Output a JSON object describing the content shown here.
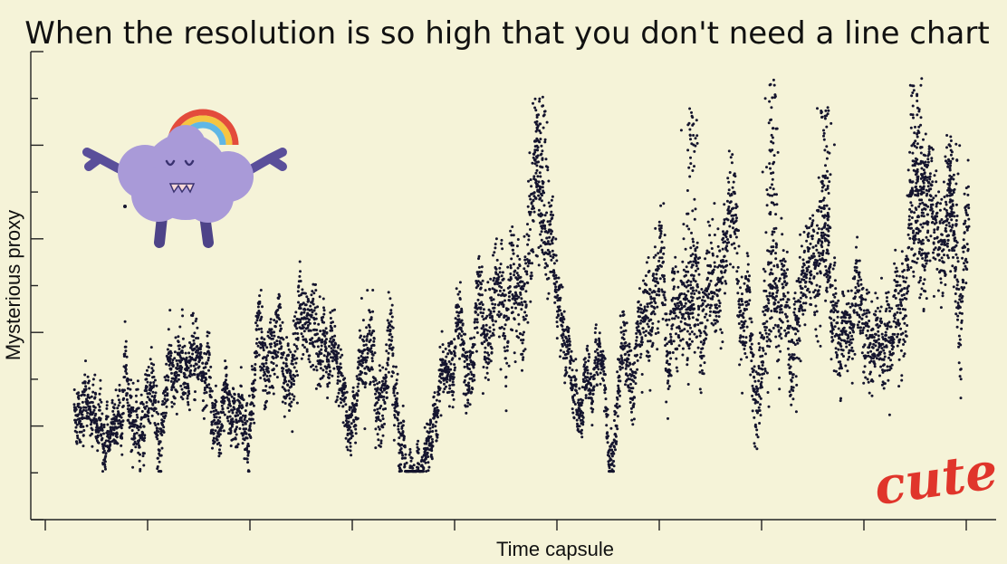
{
  "chart_data": {
    "type": "scatter",
    "title": "When the resolution is so high that you don't need a line chart",
    "xlabel": "Time capsule",
    "ylabel": "Mysterious proxy",
    "x_tick_labels": [],
    "y_tick_labels": [],
    "xlim": [
      0,
      1
    ],
    "ylim": [
      0,
      1
    ],
    "point_color": "#15152e",
    "series": [
      {
        "note_keyframes": "trend of the dense scatter cloud as (x, y, spread) in relative 0-1 data units",
        "keyframes": [
          [
            0.0,
            0.18,
            0.05
          ],
          [
            0.03,
            0.17,
            0.05
          ],
          [
            0.06,
            0.16,
            0.06
          ],
          [
            0.09,
            0.22,
            0.07
          ],
          [
            0.12,
            0.28,
            0.07
          ],
          [
            0.15,
            0.24,
            0.06
          ],
          [
            0.18,
            0.22,
            0.06
          ],
          [
            0.21,
            0.27,
            0.07
          ],
          [
            0.245,
            0.36,
            0.09
          ],
          [
            0.28,
            0.28,
            0.08
          ],
          [
            0.31,
            0.15,
            0.05
          ],
          [
            0.33,
            0.26,
            0.09
          ],
          [
            0.355,
            0.28,
            0.08
          ],
          [
            0.37,
            0.16,
            0.05
          ],
          [
            0.39,
            0.13,
            0.04
          ],
          [
            0.42,
            0.2,
            0.06
          ],
          [
            0.45,
            0.28,
            0.08
          ],
          [
            0.48,
            0.36,
            0.1
          ],
          [
            0.5,
            0.52,
            0.12
          ],
          [
            0.52,
            0.66,
            0.14
          ],
          [
            0.535,
            0.48,
            0.08
          ],
          [
            0.55,
            0.24,
            0.06
          ],
          [
            0.58,
            0.18,
            0.05
          ],
          [
            0.6,
            0.15,
            0.05
          ],
          [
            0.62,
            0.22,
            0.07
          ],
          [
            0.64,
            0.38,
            0.1
          ],
          [
            0.66,
            0.45,
            0.11
          ],
          [
            0.68,
            0.35,
            0.1
          ],
          [
            0.7,
            0.42,
            0.11
          ],
          [
            0.72,
            0.5,
            0.11
          ],
          [
            0.74,
            0.55,
            0.12
          ],
          [
            0.76,
            0.38,
            0.1
          ],
          [
            0.78,
            0.5,
            0.12
          ],
          [
            0.8,
            0.34,
            0.1
          ],
          [
            0.82,
            0.48,
            0.11
          ],
          [
            0.84,
            0.55,
            0.12
          ],
          [
            0.86,
            0.3,
            0.09
          ],
          [
            0.88,
            0.34,
            0.09
          ],
          [
            0.9,
            0.28,
            0.09
          ],
          [
            0.92,
            0.45,
            0.1
          ],
          [
            0.94,
            0.66,
            0.13
          ],
          [
            0.96,
            0.62,
            0.12
          ],
          [
            0.98,
            0.5,
            0.11
          ],
          [
            1.0,
            0.5,
            0.11
          ]
        ],
        "point_count": 6500,
        "peaks": [
          [
            0.52,
            0.9
          ],
          [
            0.69,
            0.88
          ],
          [
            0.78,
            0.94
          ],
          [
            0.84,
            0.87
          ],
          [
            0.94,
            0.95
          ],
          [
            0.95,
            0.8
          ],
          [
            0.98,
            0.8
          ]
        ]
      }
    ],
    "grid": false,
    "legend": "none"
  },
  "decorations": {
    "mascot_icon": "purple-cloud-monster-with-rainbow",
    "sticker_text": "cute",
    "sticker_color": "#e0352b"
  }
}
